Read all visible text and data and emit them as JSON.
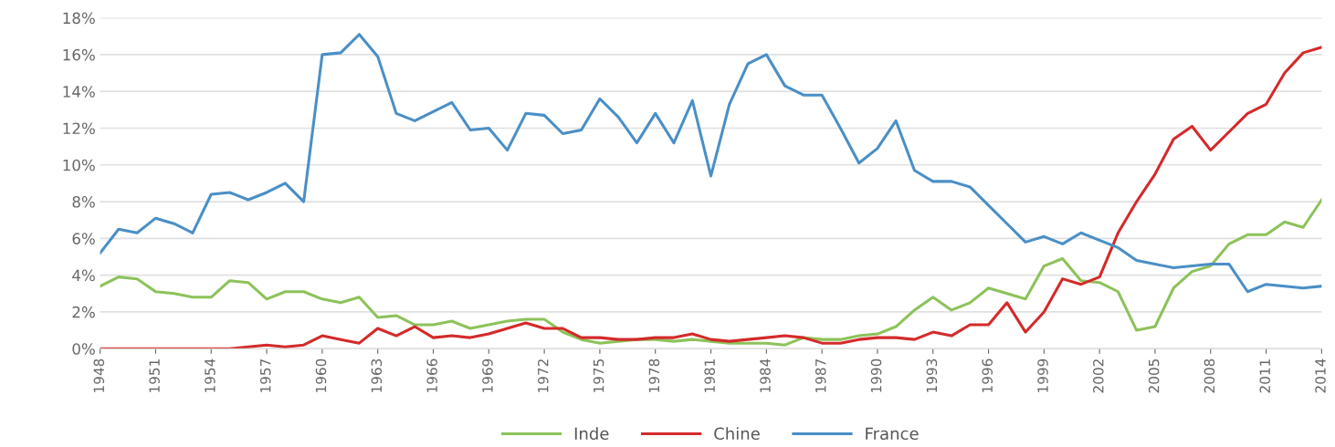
{
  "chart_data": {
    "type": "line",
    "x": [
      1948,
      1949,
      1950,
      1951,
      1952,
      1953,
      1954,
      1955,
      1956,
      1957,
      1958,
      1959,
      1960,
      1961,
      1962,
      1963,
      1964,
      1965,
      1966,
      1967,
      1968,
      1969,
      1970,
      1971,
      1972,
      1973,
      1974,
      1975,
      1976,
      1977,
      1978,
      1979,
      1980,
      1981,
      1982,
      1983,
      1984,
      1985,
      1986,
      1987,
      1988,
      1989,
      1990,
      1991,
      1992,
      1993,
      1994,
      1995,
      1996,
      1997,
      1998,
      1999,
      2000,
      2001,
      2002,
      2003,
      2004,
      2005,
      2006,
      2007,
      2008,
      2009,
      2010,
      2011,
      2012,
      2013,
      2014
    ],
    "series": [
      {
        "name": "Inde",
        "color": "#8dc25a",
        "values": [
          3.4,
          3.9,
          3.8,
          3.1,
          3.0,
          2.8,
          2.8,
          3.7,
          3.6,
          2.7,
          3.1,
          3.1,
          2.7,
          2.5,
          2.8,
          1.7,
          1.8,
          1.3,
          1.3,
          1.5,
          1.1,
          1.3,
          1.5,
          1.6,
          1.6,
          0.9,
          0.5,
          0.3,
          0.4,
          0.5,
          0.5,
          0.4,
          0.5,
          0.4,
          0.3,
          0.3,
          0.3,
          0.2,
          0.6,
          0.5,
          0.5,
          0.7,
          0.8,
          1.2,
          2.1,
          2.8,
          2.1,
          2.5,
          3.3,
          3.0,
          2.7,
          4.5,
          4.9,
          3.7,
          3.6,
          3.1,
          1.0,
          1.2,
          3.3,
          4.2,
          4.5,
          5.7,
          6.2,
          6.2,
          6.9,
          6.6,
          8.1
        ]
      },
      {
        "name": "Chine",
        "color": "#d42a2a",
        "values": [
          0.0,
          0.0,
          0.0,
          0.0,
          0.0,
          0.0,
          0.0,
          0.0,
          0.1,
          0.2,
          0.1,
          0.2,
          0.7,
          0.5,
          0.3,
          1.1,
          0.7,
          1.2,
          0.6,
          0.7,
          0.6,
          0.8,
          1.1,
          1.4,
          1.1,
          1.1,
          0.6,
          0.6,
          0.5,
          0.5,
          0.6,
          0.6,
          0.8,
          0.5,
          0.4,
          0.5,
          0.6,
          0.7,
          0.6,
          0.3,
          0.3,
          0.5,
          0.6,
          0.6,
          0.5,
          0.9,
          0.7,
          1.3,
          1.3,
          2.5,
          0.9,
          2.0,
          3.8,
          3.5,
          3.9,
          6.3,
          8.0,
          9.5,
          11.4,
          12.1,
          10.8,
          11.8,
          12.8,
          13.3,
          15.0,
          16.1,
          16.4
        ]
      },
      {
        "name": "France",
        "color": "#4a8fc6",
        "values": [
          5.2,
          6.5,
          6.3,
          7.1,
          6.8,
          6.3,
          8.4,
          8.5,
          8.1,
          8.5,
          9.0,
          8.0,
          16.0,
          16.1,
          17.1,
          15.9,
          12.8,
          12.4,
          12.9,
          13.4,
          11.9,
          12.0,
          10.8,
          12.8,
          12.7,
          11.7,
          11.9,
          13.6,
          12.6,
          11.2,
          12.8,
          11.2,
          13.5,
          9.4,
          13.3,
          15.5,
          16.0,
          14.3,
          13.8,
          13.8,
          12.0,
          10.1,
          10.9,
          12.4,
          9.7,
          9.1,
          9.1,
          8.8,
          7.8,
          6.8,
          5.8,
          6.1,
          5.7,
          6.3,
          5.9,
          5.5,
          4.8,
          4.6,
          4.4,
          4.5,
          4.6,
          4.6,
          3.1,
          3.5,
          3.4,
          3.3,
          3.4
        ]
      }
    ],
    "xlim": [
      1948,
      2014
    ],
    "xticks": [
      1948,
      1951,
      1954,
      1957,
      1960,
      1963,
      1966,
      1969,
      1972,
      1975,
      1978,
      1981,
      1984,
      1987,
      1990,
      1993,
      1996,
      1999,
      2002,
      2005,
      2008,
      2011,
      2014
    ],
    "ylim": [
      0,
      18
    ],
    "yticks": [
      {
        "value": 0,
        "label": "0%"
      },
      {
        "value": 2,
        "label": "2%"
      },
      {
        "value": 4,
        "label": "4%"
      },
      {
        "value": 6,
        "label": "6%"
      },
      {
        "value": 8,
        "label": "8%"
      },
      {
        "value": 10,
        "label": "10%"
      },
      {
        "value": 12,
        "label": "12%"
      },
      {
        "value": 14,
        "label": "14%"
      },
      {
        "value": 16,
        "label": "16%"
      },
      {
        "value": 18,
        "label": "18%"
      }
    ],
    "grid": "y",
    "legend": "bottom",
    "line_style": "solid",
    "marker": "none"
  }
}
